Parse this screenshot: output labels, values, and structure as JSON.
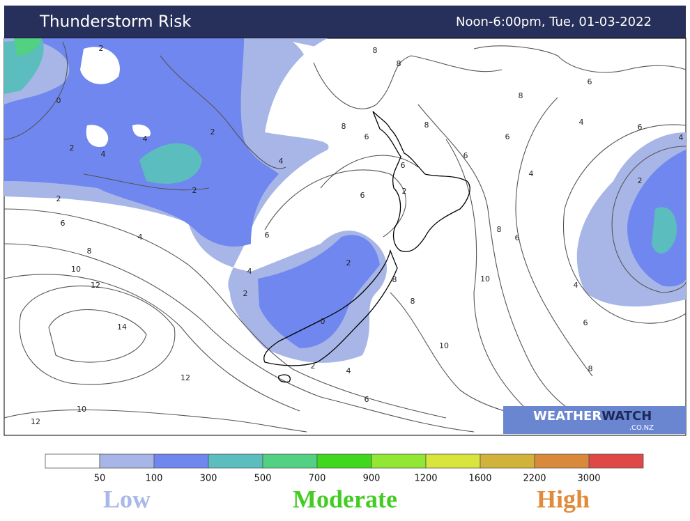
{
  "header": {
    "title": "Thunderstorm Risk",
    "valid_time": "Noon-6:00pm, Tue, 01-03-2022"
  },
  "map": {
    "contour_labels": [
      2,
      8,
      8,
      6,
      8,
      0,
      8,
      8,
      4,
      2,
      6,
      6,
      4,
      4,
      2,
      4,
      6,
      6,
      4,
      6,
      4,
      2,
      2,
      2,
      6,
      2,
      6,
      4,
      6,
      8,
      6,
      8,
      2,
      4,
      10,
      8,
      10,
      12,
      4,
      2,
      8,
      0,
      6,
      14,
      10,
      8,
      2,
      4,
      12,
      6,
      10,
      12
    ]
  },
  "logo": {
    "part1": "WEATHER",
    "part2": "WATCH",
    "domain": ".CO.NZ"
  },
  "legend": {
    "colors": [
      "#ffffff",
      "#a7b6e6",
      "#6f87ee",
      "#5bbdbd",
      "#52d183",
      "#3fd81f",
      "#92e634",
      "#d9e53c",
      "#d2b33a",
      "#d8893a",
      "#e04747"
    ],
    "ticks": [
      50,
      100,
      300,
      500,
      700,
      900,
      1200,
      1600,
      2200,
      3000
    ],
    "levels": [
      {
        "label": "Low",
        "color": "#a8b8e8"
      },
      {
        "label": "Moderate",
        "color": "#44cc22"
      },
      {
        "label": "High",
        "color": "#e08a3a"
      }
    ]
  }
}
